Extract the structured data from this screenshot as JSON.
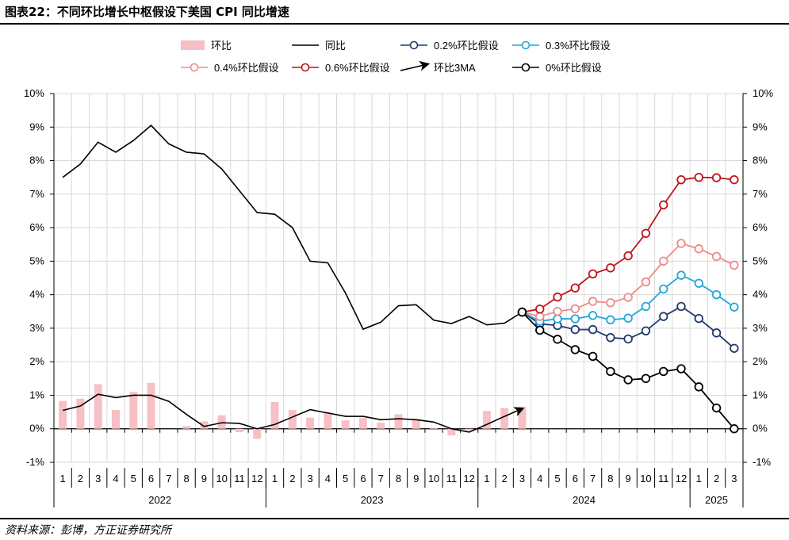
{
  "title": "图表22：不同环比增长中枢假设下美国 CPI 同比增速",
  "source": "资料来源：彭博，方正证券研究所",
  "chart_data": {
    "type": "line",
    "title": "不同环比增长中枢假设下美国 CPI 同比增速",
    "ylim": [
      -1,
      10
    ],
    "yticks": [
      "-1%",
      "0%",
      "1%",
      "2%",
      "3%",
      "4%",
      "5%",
      "6%",
      "7%",
      "8%",
      "9%",
      "10%"
    ],
    "months": [
      "1",
      "2",
      "3",
      "4",
      "5",
      "6",
      "7",
      "8",
      "9",
      "10",
      "11",
      "12",
      "1",
      "2",
      "3",
      "4",
      "5",
      "6",
      "7",
      "8",
      "9",
      "10",
      "11",
      "12",
      "1",
      "2",
      "3",
      "4",
      "5",
      "6",
      "7",
      "8",
      "9",
      "10",
      "11",
      "12",
      "1",
      "2",
      "3"
    ],
    "years": [
      {
        "label": "2022",
        "start": 0,
        "end": 11
      },
      {
        "label": "2023",
        "start": 12,
        "end": 23
      },
      {
        "label": "2024",
        "start": 24,
        "end": 35
      },
      {
        "label": "2025",
        "start": 36,
        "end": 38
      }
    ],
    "legend": [
      "环比",
      "同比",
      "0.2%环比假设",
      "0.3%环比假设",
      "0.4%环比假设",
      "0.6%环比假设",
      "环比3MA",
      "0%环比假设"
    ],
    "mom": [
      0.83,
      0.9,
      1.33,
      0.56,
      1.1,
      1.37,
      0.0,
      0.08,
      0.22,
      0.4,
      -0.1,
      -0.3,
      0.8,
      0.56,
      0.33,
      0.5,
      0.25,
      0.32,
      0.18,
      0.43,
      0.29,
      0.02,
      -0.2,
      -0.05,
      0.53,
      0.62,
      0.65
    ],
    "yoy": [
      7.5,
      7.9,
      8.55,
      8.25,
      8.6,
      9.05,
      8.5,
      8.25,
      8.2,
      7.75,
      7.1,
      6.45,
      6.4,
      6.0,
      5.0,
      4.95,
      4.05,
      2.97,
      3.18,
      3.67,
      3.7,
      3.24,
      3.14,
      3.35,
      3.1,
      3.15,
      3.48
    ],
    "mom_3ma": [
      0.55,
      0.68,
      1.03,
      0.93,
      1.0,
      1.0,
      0.82,
      0.43,
      0.07,
      0.18,
      0.16,
      0.0,
      0.13,
      0.35,
      0.57,
      0.47,
      0.37,
      0.37,
      0.27,
      0.3,
      0.27,
      0.2,
      0.0,
      -0.1,
      0.13,
      0.37,
      0.6
    ],
    "scenarios": [
      {
        "name": "0.2%环比假设",
        "color": "#1f3a6b",
        "values": [
          3.48,
          3.13,
          3.08,
          2.96,
          2.96,
          2.72,
          2.68,
          2.92,
          3.35,
          3.65,
          3.29,
          2.86,
          2.4
        ]
      },
      {
        "name": "0.3%环比假设",
        "color": "#22a7dc",
        "values": [
          3.48,
          3.21,
          3.28,
          3.28,
          3.38,
          3.25,
          3.3,
          3.65,
          4.17,
          4.58,
          4.34,
          4.0,
          3.63
        ]
      },
      {
        "name": "0.4%环比假设",
        "color": "#ee8a8a",
        "values": [
          3.48,
          3.35,
          3.5,
          3.58,
          3.8,
          3.76,
          3.92,
          4.38,
          5.0,
          5.53,
          5.37,
          5.14,
          4.88
        ]
      },
      {
        "name": "0.6%环比假设",
        "color": "#c0141c",
        "values": [
          3.48,
          3.57,
          3.93,
          4.2,
          4.62,
          4.8,
          5.16,
          5.83,
          6.68,
          7.43,
          7.5,
          7.49,
          7.43
        ]
      },
      {
        "name": "0%环比假设",
        "color": "#000000",
        "values": [
          3.48,
          2.94,
          2.67,
          2.36,
          2.16,
          1.71,
          1.46,
          1.5,
          1.71,
          1.79,
          1.25,
          0.62,
          0.0
        ]
      }
    ],
    "scenario_start_index": 26,
    "colors": {
      "bar": "#f7c0c4",
      "grid": "#d9d9d9"
    }
  }
}
